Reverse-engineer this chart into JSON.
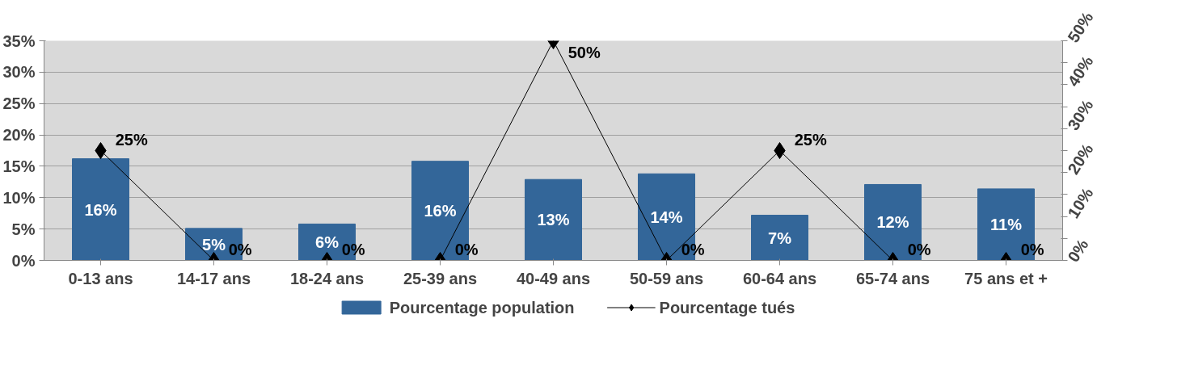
{
  "chart_data": {
    "type": "bar",
    "categories": [
      "0-13 ans",
      "14-17 ans",
      "18-24 ans",
      "25-39 ans",
      "40-49 ans",
      "50-59 ans",
      "60-64 ans",
      "65-74 ans",
      "75 ans et +"
    ],
    "series": [
      {
        "name": "Pourcentage population",
        "color": "#336699",
        "values": [
          16.2,
          5.1,
          5.8,
          15.8,
          12.9,
          13.8,
          7.2,
          12.1,
          11.4
        ],
        "value_labels": [
          "16%",
          "5%",
          "6%",
          "16%",
          "13%",
          "14%",
          "7%",
          "12%",
          "11%"
        ]
      },
      {
        "name": "Pourcentage tués",
        "type": "line",
        "axis": "y2",
        "color": "#000000",
        "marker": "diamond",
        "values": [
          25,
          0,
          0,
          0,
          50,
          0,
          25,
          0,
          0
        ],
        "value_labels": [
          "25%",
          "0%",
          "0%",
          "0%",
          "50%",
          "0%",
          "25%",
          "0%",
          "0%"
        ]
      }
    ],
    "ylim": [
      0,
      35
    ],
    "yticks": [
      {
        "value": 0,
        "label": "0%"
      },
      {
        "value": 5,
        "label": "5%"
      },
      {
        "value": 10,
        "label": "10%"
      },
      {
        "value": 15,
        "label": "15%"
      },
      {
        "value": 20,
        "label": "20%"
      },
      {
        "value": 25,
        "label": "25%"
      },
      {
        "value": 30,
        "label": "30%"
      },
      {
        "value": 35,
        "label": "35%"
      }
    ],
    "y2lim": [
      0,
      50
    ],
    "y2ticks": [
      {
        "value": 0,
        "label": "0%"
      },
      {
        "value": 5,
        "label": null
      },
      {
        "value": 10,
        "label": "10%"
      },
      {
        "value": 15,
        "label": null
      },
      {
        "value": 20,
        "label": "20%"
      },
      {
        "value": 25,
        "label": null
      },
      {
        "value": 30,
        "label": "30%"
      },
      {
        "value": 35,
        "label": null
      },
      {
        "value": 40,
        "label": "40%"
      },
      {
        "value": 45,
        "label": null
      },
      {
        "value": 50,
        "label": "50%"
      }
    ],
    "grid": "y",
    "legend": "bottom"
  }
}
